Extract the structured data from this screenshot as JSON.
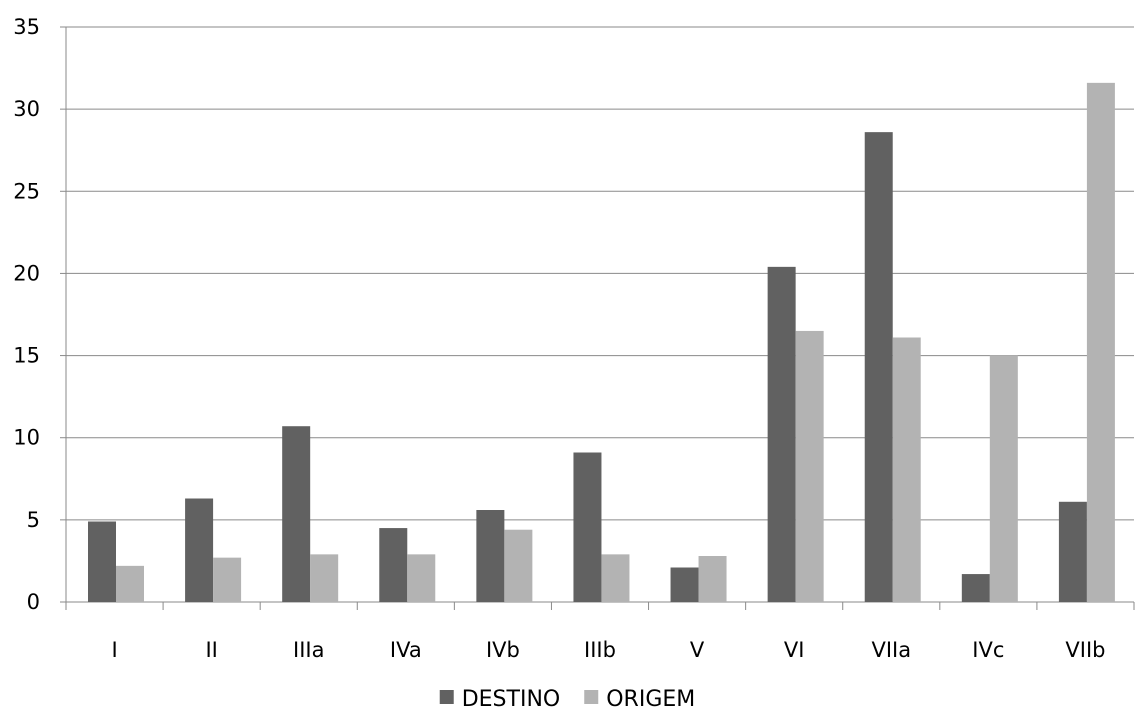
{
  "chart_data": {
    "type": "bar",
    "title": "",
    "xlabel": "",
    "ylabel": "",
    "categories": [
      "I",
      "II",
      "IIIa",
      "IVa",
      "IVb",
      "IIIb",
      "V",
      "VI",
      "VIIa",
      "IVc",
      "VIIb"
    ],
    "series": [
      {
        "name": "DESTINO",
        "color": "#616161",
        "values": [
          4.9,
          6.3,
          10.7,
          4.5,
          5.6,
          9.1,
          2.1,
          20.4,
          28.6,
          1.7,
          6.1
        ]
      },
      {
        "name": "ORIGEM",
        "color": "#b3b3b3",
        "values": [
          2.2,
          2.7,
          2.9,
          2.9,
          4.4,
          2.9,
          2.8,
          16.5,
          16.1,
          15.0,
          31.6
        ]
      }
    ],
    "ylim": [
      0,
      35
    ],
    "yticks": [
      0,
      5,
      10,
      15,
      20,
      25,
      30,
      35
    ],
    "grid": true,
    "legend_position": "bottom"
  }
}
